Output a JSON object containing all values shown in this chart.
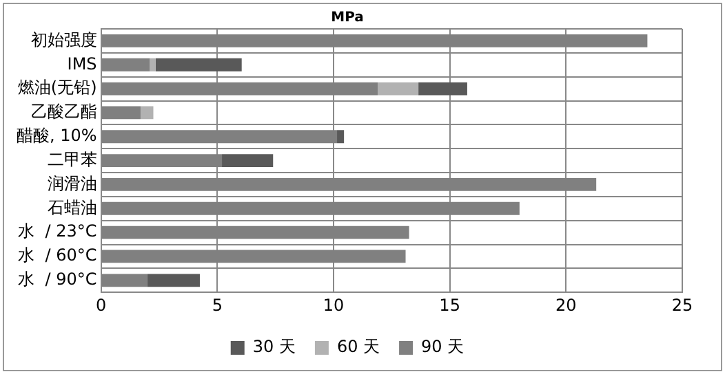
{
  "chart_data": {
    "type": "bar",
    "orientation": "horizontal",
    "stacked": true,
    "title": "MPa",
    "categories": [
      "初始强度",
      "IMS",
      "燃油(无铅)",
      "乙酸乙酯",
      "醋酸, 10%",
      "二甲苯",
      "润滑油",
      "石蜡油",
      "水  / 23°C",
      "水  / 60°C",
      "水  / 90°C"
    ],
    "series": [
      {
        "name": "90 天",
        "color": "#808080",
        "values": [
          23.5,
          2.1,
          11.9,
          1.7,
          10.15,
          5.2,
          21.3,
          18.0,
          13.25,
          13.1,
          2.0
        ]
      },
      {
        "name": "60 天",
        "color": "#b2b2b2",
        "values": [
          null,
          0.25,
          1.75,
          0.55,
          null,
          null,
          null,
          null,
          null,
          null,
          null
        ]
      },
      {
        "name": "30 天",
        "color": "#595959",
        "values": [
          null,
          3.7,
          2.1,
          null,
          0.3,
          2.2,
          null,
          null,
          null,
          null,
          2.25
        ]
      }
    ],
    "xlim": [
      0,
      25
    ],
    "xticks": [
      0,
      5,
      10,
      15,
      20,
      25
    ],
    "grid": true,
    "legend": "bottom"
  }
}
